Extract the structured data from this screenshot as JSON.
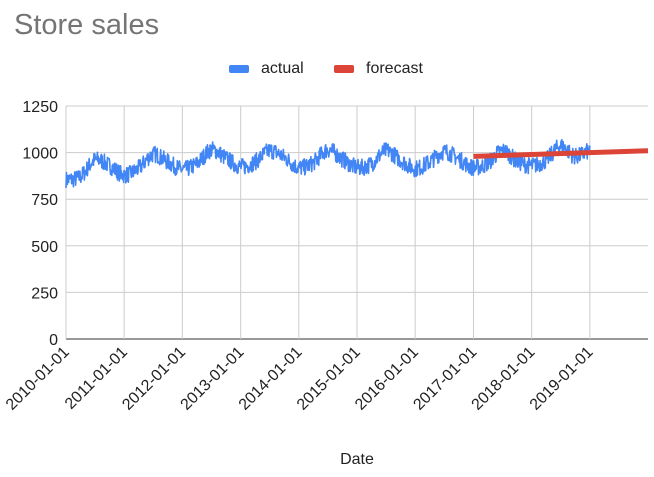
{
  "chart_data": {
    "type": "line",
    "title": "Store sales",
    "xlabel": "Date",
    "ylabel": "",
    "ylim": [
      0,
      1250
    ],
    "yticks": [
      0,
      250,
      500,
      750,
      1000,
      1250
    ],
    "xticks": [
      "2010-01-01",
      "2011-01-01",
      "2012-01-01",
      "2013-01-01",
      "2014-01-01",
      "2015-01-01",
      "2016-01-01",
      "2017-01-01",
      "2018-01-01",
      "2019-01-01"
    ],
    "xlim": [
      "2010-01-01",
      "2020-01-01"
    ],
    "grid": true,
    "legend_position": "top",
    "series": [
      {
        "name": "actual",
        "color": "#4285f4",
        "x": [
          "2010-01-01",
          "2010-04-01",
          "2010-07-01",
          "2010-10-01",
          "2011-01-01",
          "2011-04-01",
          "2011-07-01",
          "2011-10-01",
          "2012-01-01",
          "2012-04-01",
          "2012-07-01",
          "2012-10-01",
          "2013-01-01",
          "2013-04-01",
          "2013-07-01",
          "2013-10-01",
          "2014-01-01",
          "2014-04-01",
          "2014-07-01",
          "2014-10-01",
          "2015-01-01",
          "2015-04-01",
          "2015-07-01",
          "2015-10-01",
          "2016-01-01",
          "2016-04-01",
          "2016-07-01",
          "2016-10-01",
          "2017-01-01",
          "2017-04-01",
          "2017-07-01",
          "2017-10-01",
          "2018-01-01",
          "2018-04-01",
          "2018-07-01",
          "2018-10-01",
          "2019-01-01"
        ],
        "values": [
          855,
          870,
          960,
          930,
          880,
          915,
          990,
          950,
          910,
          940,
          1015,
          970,
          925,
          950,
          1010,
          975,
          920,
          945,
          1015,
          965,
          920,
          940,
          1010,
          960,
          915,
          950,
          1005,
          965,
          920,
          945,
          1010,
          955,
          930,
          960,
          1035,
          980,
          1010
        ]
      },
      {
        "name": "forecast",
        "color": "#db4437",
        "x": [
          "2017-01-01",
          "2020-01-01"
        ],
        "values": [
          980,
          1010
        ]
      }
    ]
  }
}
